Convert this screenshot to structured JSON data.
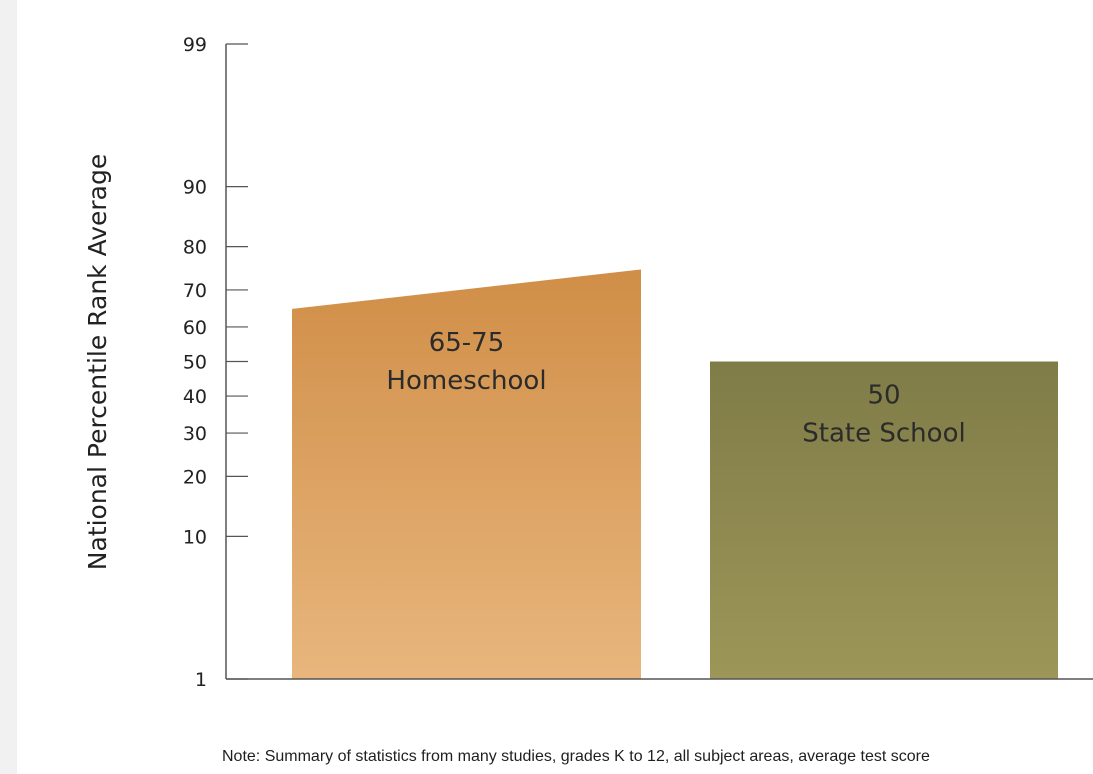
{
  "chart_data": {
    "type": "bar",
    "ylabel": "National Percentile Rank Average",
    "yscale": "normal-percentile",
    "ylim": [
      1,
      99
    ],
    "yticks": [
      1,
      10,
      20,
      30,
      40,
      50,
      60,
      70,
      80,
      90,
      99
    ],
    "categories": [
      "Homeschool",
      "State School"
    ],
    "series": [
      {
        "values": [
          [
            65,
            75
          ],
          [
            50,
            50
          ]
        ],
        "value_labels": [
          "65-75",
          "50"
        ]
      }
    ],
    "colors": {
      "Homeschool": [
        "#d08e47",
        "#e8b67d"
      ],
      "State School": [
        "#807c48",
        "#9c9658"
      ]
    },
    "grid": false,
    "note": "Note: Summary of statistics from many studies, grades K to 12, all subject areas, average test score"
  }
}
